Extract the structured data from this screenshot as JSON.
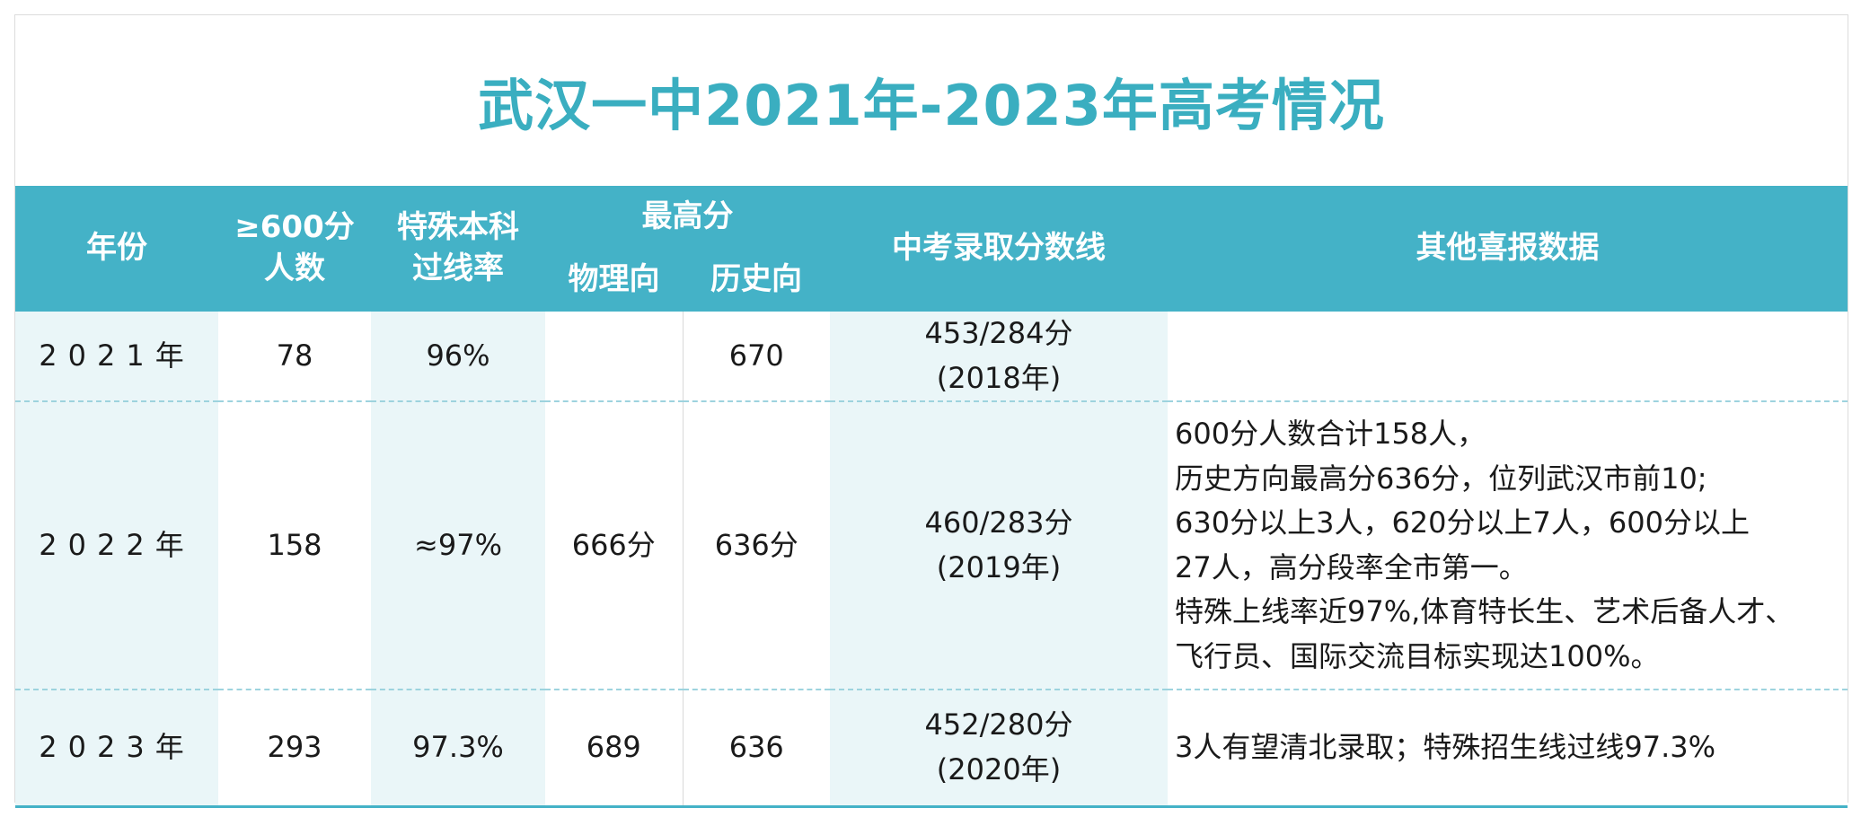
{
  "title": "武汉一中2021年-2023年高考情况",
  "header": {
    "year": "年份",
    "count600_line1": "≥600分",
    "count600_line2": "人数",
    "special_line1": "特殊本科",
    "special_line2": "过线率",
    "max_score": "最高分",
    "physics": "物理向",
    "history": "历史向",
    "zhongkao": "中考录取分数线",
    "other": "其他喜报数据"
  },
  "rows": [
    {
      "year": "2021年",
      "count600": "78",
      "special_rate": "96%",
      "physics": "",
      "history": "670",
      "zhongkao_line1": "453/284分",
      "zhongkao_line2": "(2018年)",
      "other": []
    },
    {
      "year": "2022年",
      "count600": "158",
      "special_rate": "≈97%",
      "physics": "666分",
      "history": "636分",
      "zhongkao_line1": "460/283分",
      "zhongkao_line2": "(2019年)",
      "other": [
        "600分人数合计158人，",
        "历史方向最高分636分，位列武汉市前10;",
        "630分以上3人，620分以上7人，600分以上",
        "27人，高分段率全市第一。",
        "特殊上线率近97%,体育特长生、艺术后备人才、",
        "飞行员、国际交流目标实现达100%。"
      ]
    },
    {
      "year": "2023年",
      "count600": "293",
      "special_rate": "97.3%",
      "physics": "689",
      "history": "636",
      "zhongkao_line1": "452/280分",
      "zhongkao_line2": "(2020年)",
      "other": [
        "3人有望清北录取；特殊招生线过线97.3%"
      ]
    }
  ]
}
